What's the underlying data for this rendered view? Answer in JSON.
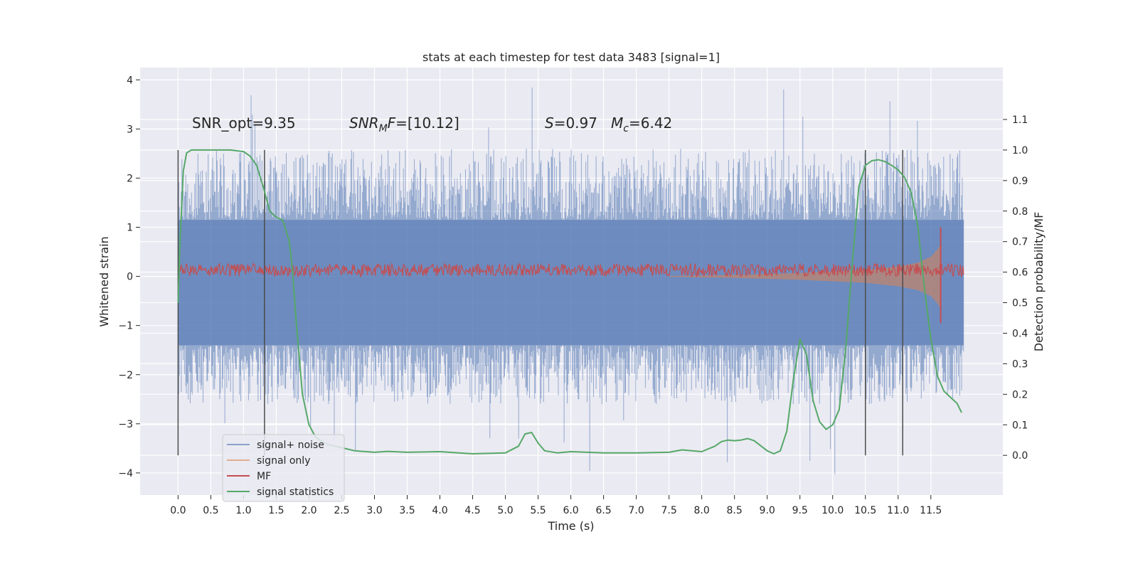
{
  "chart_data": {
    "type": "line",
    "title": "stats at each timestep for test data 3483 [signal=1]",
    "xlabel": "Time (s)",
    "ylabel": "Whitened strain",
    "y2label": "Detection probability/MF",
    "xlim": [
      -0.58,
      12.6
    ],
    "ylim": [
      -4.45,
      4.25
    ],
    "y2lim": [
      -0.13,
      1.27
    ],
    "xticks": [
      "0.0",
      "0.5",
      "1.0",
      "1.5",
      "2.0",
      "2.5",
      "3.0",
      "3.5",
      "4.0",
      "4.5",
      "5.0",
      "5.5",
      "6.0",
      "6.5",
      "7.0",
      "7.5",
      "8.0",
      "8.5",
      "9.0",
      "9.5",
      "10.0",
      "10.5",
      "11.0",
      "11.5"
    ],
    "xtick_values": [
      0,
      0.5,
      1,
      1.5,
      2,
      2.5,
      3,
      3.5,
      4,
      4.5,
      5,
      5.5,
      6,
      6.5,
      7,
      7.5,
      8,
      8.5,
      9,
      9.5,
      10,
      10.5,
      11,
      11.5
    ],
    "yticks": [
      "4",
      "3",
      "2",
      "1",
      "0",
      "−1",
      "−2",
      "−3",
      "−4"
    ],
    "ytick_values": [
      4,
      3,
      2,
      1,
      0,
      -1,
      -2,
      -3,
      -4
    ],
    "y2ticks": [
      "1.1",
      "1.0",
      "0.9",
      "0.8",
      "0.7",
      "0.6",
      "0.5",
      "0.4",
      "0.3",
      "0.2",
      "0.1",
      "0.0"
    ],
    "y2tick_values": [
      1.1,
      1.0,
      0.9,
      0.8,
      0.7,
      0.6,
      0.5,
      0.4,
      0.3,
      0.2,
      0.1,
      0.0
    ],
    "grid": true,
    "legend_position": "lower-left",
    "vlines": [
      0.0,
      1.32,
      10.5,
      11.07
    ],
    "noise_band": {
      "x_start": 0.0,
      "x_end": 12.0,
      "inner_max": 1.15,
      "inner_min": -1.4,
      "peak_max": 3.9,
      "peak_min": -4.1
    },
    "series": [
      {
        "name": "signal+ noise",
        "color": "#4c72b0",
        "axis": "left",
        "style": "noise"
      },
      {
        "name": "signal only",
        "color": "#dd8452",
        "axis": "left",
        "style": "chirp",
        "x": [
          7.5,
          8.5,
          9.5,
          10.5,
          11.0,
          11.3,
          11.5,
          11.6,
          11.65
        ],
        "envelope": [
          0.01,
          0.03,
          0.07,
          0.13,
          0.2,
          0.28,
          0.4,
          0.55,
          0.65
        ]
      },
      {
        "name": "MF",
        "color": "#c44e52",
        "axis": "left",
        "style": "mf",
        "x_start": 0.0,
        "x_end": 12.0,
        "center": 0.13,
        "amp": 0.13,
        "spike_x": 11.65,
        "spike_top": 1.0,
        "spike_bottom": -0.95
      },
      {
        "name": "signal statistics",
        "color": "#55a868",
        "axis": "right",
        "style": "line",
        "x": [
          0.0,
          0.03,
          0.08,
          0.13,
          0.2,
          0.3,
          0.5,
          0.8,
          1.0,
          1.1,
          1.2,
          1.3,
          1.4,
          1.5,
          1.6,
          1.7,
          1.75,
          1.8,
          1.9,
          2.0,
          2.1,
          2.2,
          2.3,
          2.5,
          2.7,
          3.0,
          3.2,
          3.5,
          4.0,
          4.5,
          5.0,
          5.2,
          5.3,
          5.4,
          5.5,
          5.6,
          5.8,
          6.0,
          6.5,
          7.0,
          7.5,
          7.7,
          8.0,
          8.2,
          8.3,
          8.4,
          8.5,
          8.6,
          8.7,
          8.8,
          9.0,
          9.1,
          9.2,
          9.3,
          9.4,
          9.5,
          9.6,
          9.7,
          9.8,
          9.9,
          10.0,
          10.1,
          10.2,
          10.3,
          10.4,
          10.5,
          10.6,
          10.7,
          10.8,
          10.9,
          11.0,
          11.1,
          11.2,
          11.3,
          11.4,
          11.5,
          11.6,
          11.7,
          11.8,
          11.9,
          11.97
        ],
        "y": [
          0.5,
          0.7,
          0.93,
          0.99,
          1.0,
          1.0,
          1.0,
          1.0,
          0.995,
          0.98,
          0.95,
          0.88,
          0.8,
          0.78,
          0.77,
          0.7,
          0.6,
          0.45,
          0.2,
          0.1,
          0.06,
          0.045,
          0.035,
          0.025,
          0.015,
          0.01,
          0.013,
          0.01,
          0.012,
          0.005,
          0.008,
          0.03,
          0.07,
          0.075,
          0.04,
          0.015,
          0.008,
          0.012,
          0.008,
          0.008,
          0.01,
          0.018,
          0.012,
          0.03,
          0.045,
          0.05,
          0.048,
          0.05,
          0.055,
          0.048,
          0.015,
          0.005,
          0.015,
          0.08,
          0.25,
          0.38,
          0.33,
          0.18,
          0.11,
          0.085,
          0.1,
          0.15,
          0.35,
          0.63,
          0.88,
          0.95,
          0.965,
          0.968,
          0.962,
          0.95,
          0.935,
          0.91,
          0.86,
          0.75,
          0.55,
          0.38,
          0.26,
          0.21,
          0.19,
          0.17,
          0.14
        ]
      }
    ],
    "annotations": [
      "SNR_opt=9.35",
      "SNR_MF=[10.12]",
      "S=0.97",
      "M_c=6.42"
    ]
  },
  "annotations_display": {
    "snr_opt": "SNR_opt=9.35",
    "snr_mf_prefix": "SNR",
    "snr_mf_sub": "M",
    "snr_mf_mid": "F",
    "snr_mf_value": "=[10.12]",
    "s_symbol": "S",
    "s_value": "=0.97",
    "mc_symbol": "M",
    "mc_sub": "c",
    "mc_value": "=6.42"
  },
  "colors": {
    "axes_bg": "#eaeaf2",
    "grid": "#ffffff",
    "vline": "#4d4d4d"
  }
}
